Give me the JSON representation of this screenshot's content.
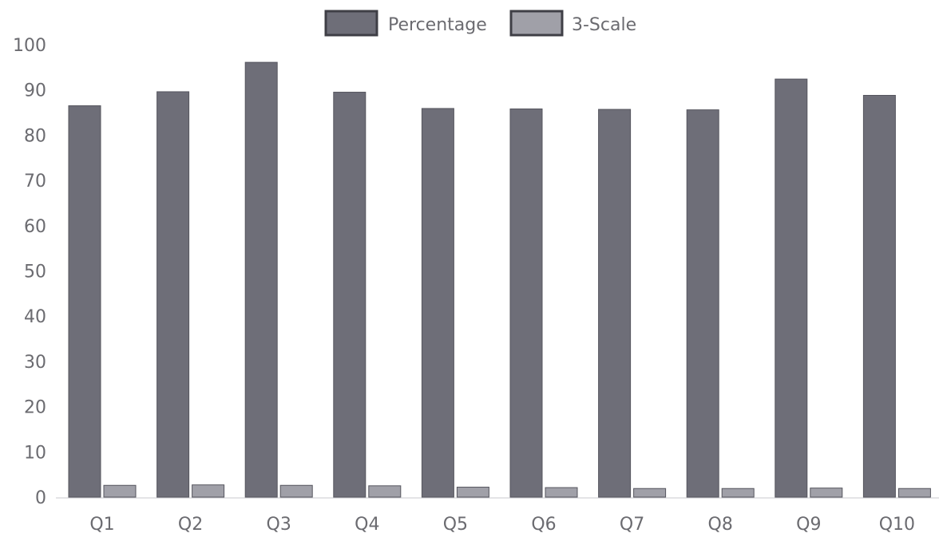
{
  "chart_data": {
    "type": "bar",
    "title": "",
    "xlabel": "",
    "ylabel": "",
    "categories": [
      "Q1",
      "Q2",
      "Q3",
      "Q4",
      "Q5",
      "Q6",
      "Q7",
      "Q8",
      "Q9",
      "Q10"
    ],
    "series": [
      {
        "name": "Percentage",
        "color": "#6e6e78",
        "values": [
          86.5,
          89.6,
          96.1,
          89.5,
          85.9,
          85.8,
          85.7,
          85.6,
          92.4,
          88.8
        ]
      },
      {
        "name": "3-Scale",
        "color": "#a0a0a8",
        "values": [
          2.6,
          2.7,
          2.6,
          2.5,
          2.2,
          2.1,
          1.9,
          1.9,
          2.0,
          1.9
        ]
      }
    ],
    "ylim": [
      0,
      100
    ],
    "yticks": [
      0,
      10,
      20,
      30,
      40,
      50,
      60,
      70,
      80,
      90,
      100
    ],
    "grid": false,
    "legend_position": "top-center"
  }
}
